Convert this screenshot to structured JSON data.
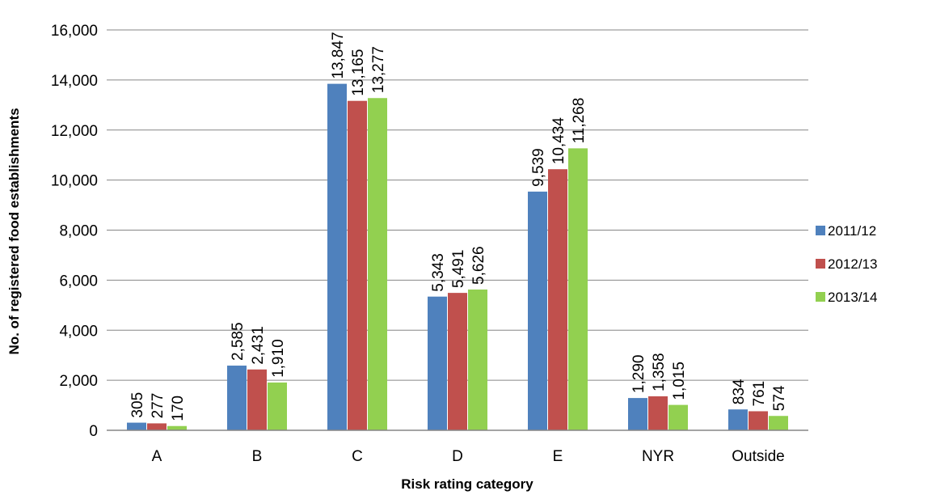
{
  "chart_data": {
    "type": "bar",
    "title": "",
    "xlabel": "Risk rating category",
    "ylabel": "No. of registered food establishments",
    "ylim": [
      0,
      16000
    ],
    "yticks": [
      0,
      2000,
      4000,
      6000,
      8000,
      10000,
      12000,
      14000,
      16000
    ],
    "grid": "horizontal",
    "legend_position": "right",
    "categories": [
      "A",
      "B",
      "C",
      "D",
      "E",
      "NYR",
      "Outside"
    ],
    "series": [
      {
        "name": "2011/12",
        "color": "#4F81BD",
        "values": [
          305,
          2585,
          13847,
          5343,
          9539,
          1290,
          834
        ]
      },
      {
        "name": "2012/13",
        "color": "#C0504D",
        "values": [
          277,
          2431,
          13165,
          5491,
          10434,
          1358,
          761
        ]
      },
      {
        "name": "2013/14",
        "color": "#92D050",
        "values": [
          170,
          1910,
          13277,
          5626,
          11268,
          1015,
          574
        ]
      }
    ]
  }
}
